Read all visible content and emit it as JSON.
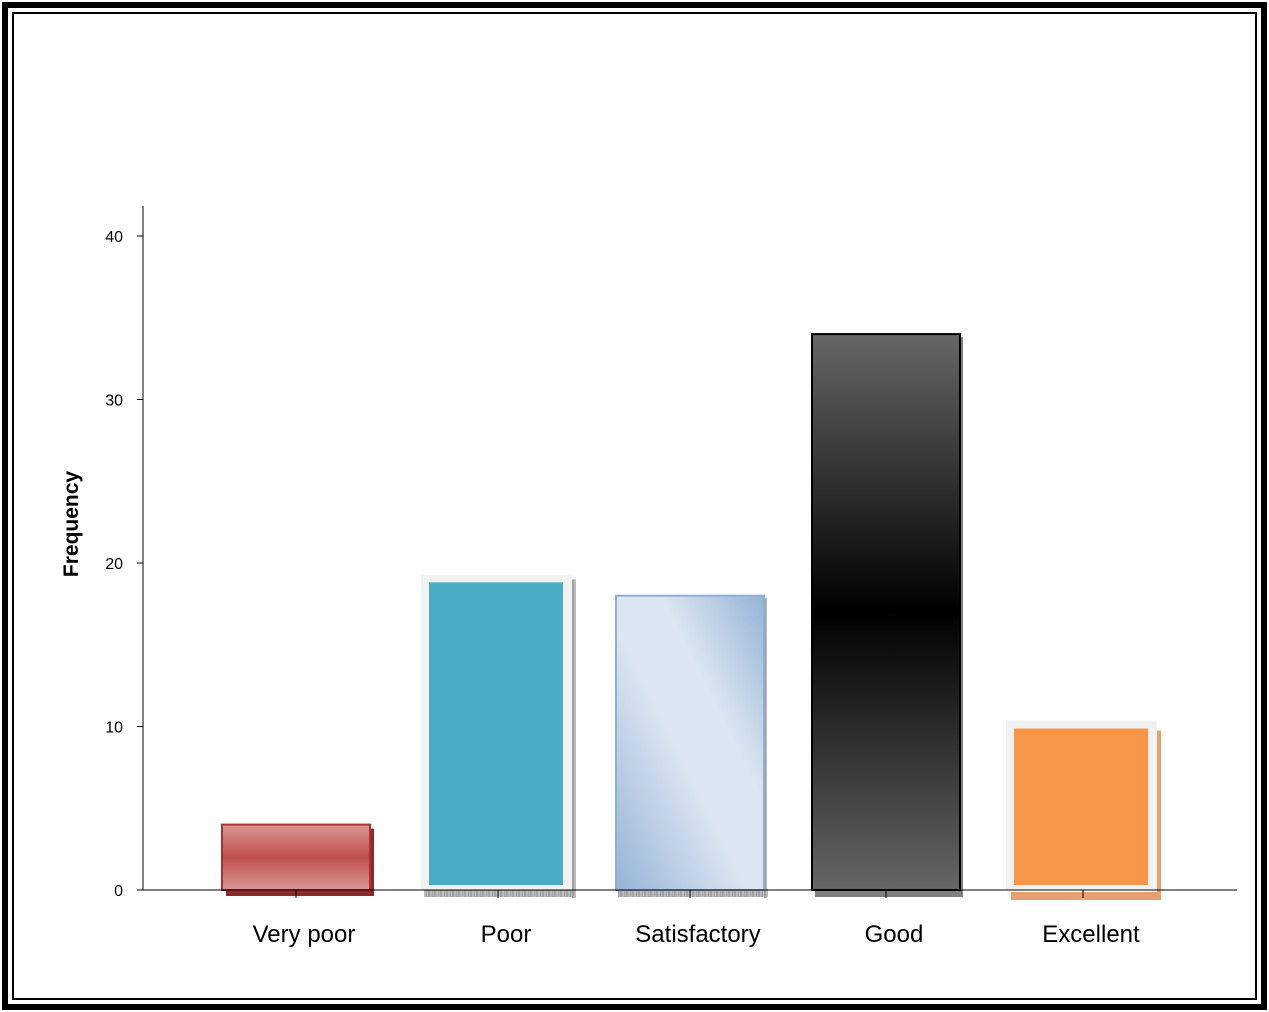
{
  "chart_data": {
    "type": "bar",
    "categories": [
      "Very poor",
      "Poor",
      "Satisfactory",
      "Good",
      "Excellent"
    ],
    "values": [
      4,
      19,
      18,
      34,
      10
    ],
    "ylabel": "Frequency",
    "xlabel": "",
    "ylim": [
      0,
      42
    ],
    "yticks": [
      0,
      10,
      20,
      30,
      40
    ],
    "grid": false,
    "bar_colors": [
      "#c0504d",
      "#4bacc6",
      "#95b3d7",
      "#404040",
      "#f79646"
    ]
  }
}
